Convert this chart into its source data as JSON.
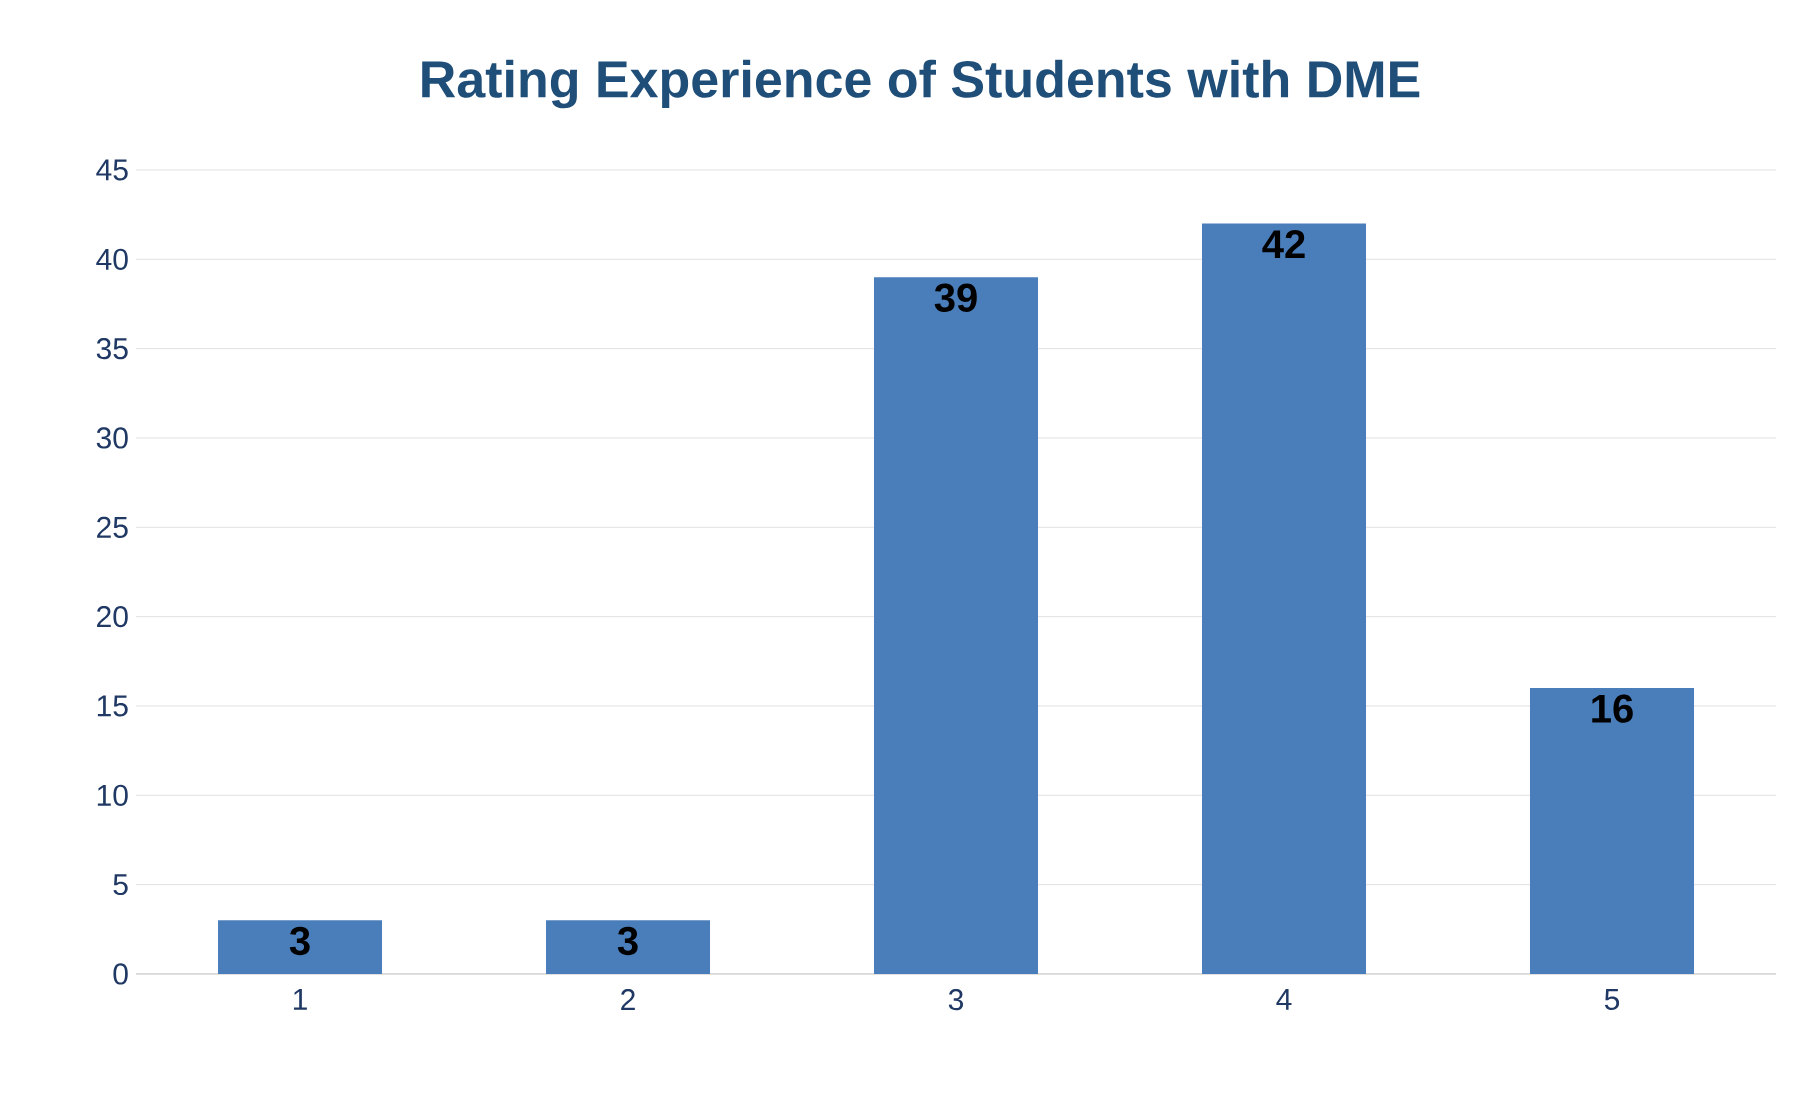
{
  "chart_data": {
    "type": "bar",
    "title": "Rating Experience of Students with DME",
    "categories": [
      "1",
      "2",
      "3",
      "4",
      "5"
    ],
    "values": [
      3,
      3,
      39,
      42,
      16
    ],
    "color": "#4a7ebb",
    "ylim": [
      0,
      45
    ],
    "yticks": [
      0,
      5,
      10,
      15,
      20,
      25,
      30,
      35,
      40,
      45
    ],
    "grid": "y",
    "data_labels": true
  }
}
